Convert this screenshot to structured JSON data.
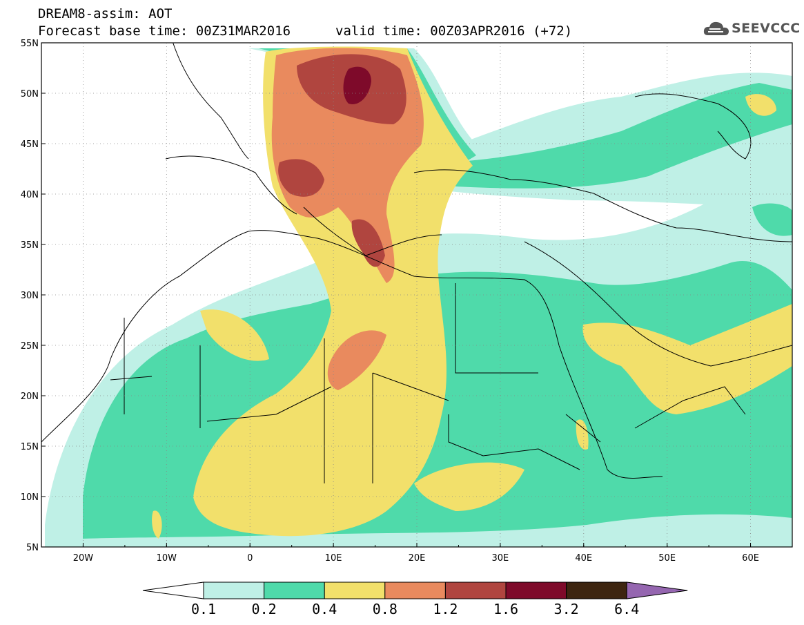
{
  "header": {
    "title_line1": "DREAM8-assim: AOT",
    "title_line2": "Forecast base time: 00Z31MAR2016",
    "valid_time": "valid time: 00Z03APR2016 (+72)",
    "brand": "SEEVCCC"
  },
  "map": {
    "lon_labels": [
      "20W",
      "10W",
      "0",
      "10E",
      "20E",
      "30E",
      "40E",
      "50E",
      "60E"
    ],
    "lat_labels": [
      "55N",
      "50N",
      "45N",
      "40N",
      "35N",
      "30N",
      "25N",
      "20N",
      "15N",
      "10N",
      "5N"
    ],
    "lon_range": [
      -25,
      65
    ],
    "lat_range": [
      5,
      55
    ],
    "grid": true
  },
  "colorbar": {
    "labels": [
      "0.1",
      "0.2",
      "0.4",
      "0.8",
      "1.2",
      "1.6",
      "3.2",
      "6.4"
    ],
    "colors": [
      "#bff0e6",
      "#4fdaaa",
      "#f2e06b",
      "#e98a5e",
      "#b0453f",
      "#7e0a2a",
      "#3d2510",
      "#9566b0"
    ],
    "under_color": "#ffffff"
  }
}
